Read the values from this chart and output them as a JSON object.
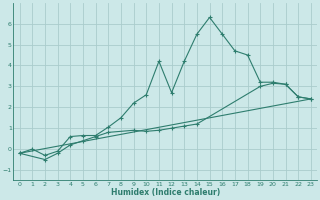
{
  "xlabel": "Humidex (Indice chaleur)",
  "bg_color": "#cce8e8",
  "grid_color": "#aacccc",
  "line_color": "#2e7d6e",
  "xlim": [
    -0.5,
    23.5
  ],
  "ylim": [
    -1.5,
    7.0
  ],
  "xticks": [
    0,
    1,
    2,
    3,
    4,
    5,
    6,
    7,
    8,
    9,
    10,
    11,
    12,
    13,
    14,
    15,
    16,
    17,
    18,
    19,
    20,
    21,
    22,
    23
  ],
  "yticks": [
    -1,
    0,
    1,
    2,
    3,
    4,
    5,
    6
  ],
  "curve1_x": [
    0,
    1,
    2,
    3,
    4,
    5,
    6,
    7,
    8,
    9,
    10,
    11,
    12,
    13,
    14,
    15,
    16,
    17,
    18,
    19,
    20,
    21,
    22,
    23
  ],
  "curve1_y": [
    -0.2,
    0.0,
    -0.3,
    -0.1,
    0.6,
    0.65,
    0.65,
    1.05,
    1.5,
    2.2,
    2.6,
    4.2,
    2.7,
    4.2,
    5.5,
    6.3,
    5.5,
    4.7,
    4.5,
    3.2,
    3.2,
    3.1,
    2.5,
    2.4
  ],
  "curve2_x": [
    0,
    2,
    3,
    4,
    5,
    6,
    7,
    9,
    10,
    11,
    12,
    13,
    14,
    19,
    20,
    21,
    22,
    23
  ],
  "curve2_y": [
    -0.2,
    -0.5,
    -0.2,
    0.2,
    0.4,
    0.6,
    0.8,
    0.9,
    0.85,
    0.9,
    1.0,
    1.1,
    1.2,
    3.0,
    3.15,
    3.1,
    2.5,
    2.4
  ],
  "curve3_x": [
    0,
    23
  ],
  "curve3_y": [
    -0.2,
    2.4
  ]
}
